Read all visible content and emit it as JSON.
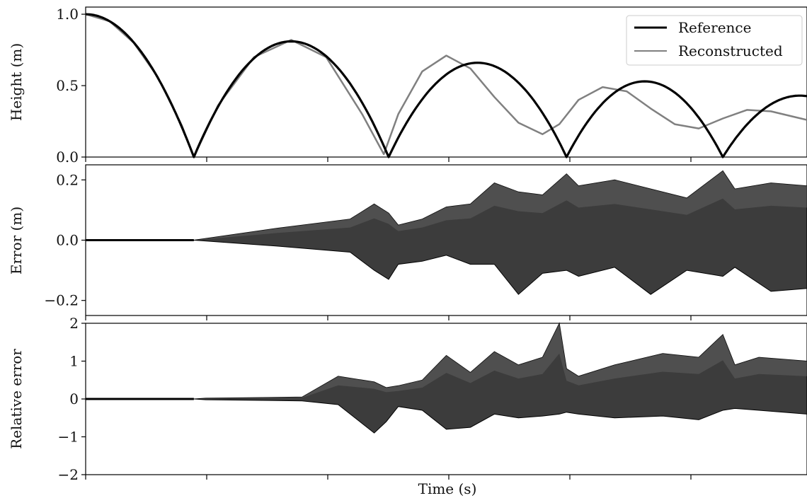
{
  "chart_data": [
    {
      "type": "line",
      "ylabel": "Height (m)",
      "xlabel": "",
      "ylim": [
        0,
        1.05
      ],
      "yticks": [
        "0.0",
        "0.5",
        "1.0"
      ],
      "ytick_values": [
        0,
        0.5,
        1.0
      ],
      "xlim": [
        0,
        3.0
      ],
      "grid": false,
      "legend": "top-right",
      "series": [
        {
          "name": "Reference",
          "color": "#000000",
          "note_key": "reference",
          "bounces": [
            {
              "t0": 0.0,
              "t1": 0.45,
              "apex_t": 0.0,
              "apex_h": 1.0
            },
            {
              "t0": 0.45,
              "t1": 1.26,
              "apex_t": 0.855,
              "apex_h": 0.81
            },
            {
              "t0": 1.26,
              "t1": 2.0,
              "apex_t": 1.63,
              "apex_h": 0.66
            },
            {
              "t0": 2.0,
              "t1": 2.65,
              "apex_t": 2.325,
              "apex_h": 0.53
            },
            {
              "t0": 2.65,
              "t1": 3.0,
              "apex_t": 2.97,
              "apex_h": 0.43
            }
          ]
        },
        {
          "name": "Reconstructed",
          "color": "#808080",
          "points_t": [
            0.0,
            0.1,
            0.2,
            0.3,
            0.4,
            0.45,
            0.55,
            0.7,
            0.855,
            1.0,
            1.15,
            1.24,
            1.3,
            1.4,
            1.5,
            1.6,
            1.7,
            1.8,
            1.9,
            1.97,
            2.05,
            2.15,
            2.25,
            2.35,
            2.45,
            2.55,
            2.65,
            2.75,
            2.85,
            2.95,
            3.0
          ],
          "points_h": [
            1.0,
            0.95,
            0.8,
            0.56,
            0.22,
            0.0,
            0.36,
            0.7,
            0.82,
            0.7,
            0.3,
            0.02,
            0.3,
            0.6,
            0.71,
            0.62,
            0.42,
            0.24,
            0.16,
            0.23,
            0.4,
            0.49,
            0.46,
            0.34,
            0.23,
            0.2,
            0.27,
            0.33,
            0.32,
            0.28,
            0.26
          ]
        }
      ]
    },
    {
      "type": "area",
      "ylabel": "Error (m)",
      "xlabel": "",
      "ylim": [
        -0.25,
        0.25
      ],
      "yticks": [
        "−0.2",
        "0.0",
        "0.2"
      ],
      "ytick_values": [
        -0.2,
        0,
        0.2
      ],
      "xlim": [
        0,
        3.0
      ],
      "grid": false,
      "envelope_t": [
        0.0,
        0.45,
        0.8,
        1.1,
        1.2,
        1.26,
        1.3,
        1.4,
        1.5,
        1.6,
        1.7,
        1.8,
        1.9,
        2.0,
        2.05,
        2.2,
        2.35,
        2.5,
        2.65,
        2.7,
        2.85,
        3.0
      ],
      "envelope_upper": [
        0.0,
        0.0,
        0.04,
        0.07,
        0.12,
        0.09,
        0.05,
        0.07,
        0.11,
        0.12,
        0.19,
        0.16,
        0.15,
        0.22,
        0.18,
        0.2,
        0.17,
        0.14,
        0.23,
        0.17,
        0.19,
        0.18
      ],
      "envelope_lower": [
        0.0,
        0.0,
        -0.02,
        -0.04,
        -0.1,
        -0.13,
        -0.08,
        -0.07,
        -0.05,
        -0.08,
        -0.08,
        -0.18,
        -0.11,
        -0.1,
        -0.12,
        -0.09,
        -0.18,
        -0.1,
        -0.12,
        -0.09,
        -0.17,
        -0.16
      ]
    },
    {
      "type": "area",
      "ylabel": "Relative error",
      "xlabel": "Time (s)",
      "ylim": [
        -2,
        2
      ],
      "yticks": [
        "−2",
        "−1",
        "0",
        "1",
        "2"
      ],
      "ytick_values": [
        -2,
        -1,
        0,
        1,
        2
      ],
      "xlim": [
        0,
        3.0
      ],
      "grid": false,
      "envelope_t": [
        0.0,
        0.45,
        0.5,
        0.9,
        1.05,
        1.2,
        1.25,
        1.3,
        1.4,
        1.5,
        1.6,
        1.7,
        1.8,
        1.9,
        1.97,
        2.0,
        2.05,
        2.2,
        2.4,
        2.55,
        2.65,
        2.7,
        2.8,
        3.0
      ],
      "envelope_upper": [
        0.0,
        0.0,
        0.02,
        0.05,
        0.6,
        0.45,
        0.3,
        0.35,
        0.5,
        1.15,
        0.7,
        1.25,
        0.9,
        1.1,
        2.0,
        0.8,
        0.6,
        0.9,
        1.2,
        1.1,
        1.7,
        0.9,
        1.1,
        1.0
      ],
      "envelope_lower": [
        0.0,
        0.0,
        -0.02,
        -0.05,
        -0.15,
        -0.9,
        -0.6,
        -0.2,
        -0.3,
        -0.8,
        -0.75,
        -0.4,
        -0.5,
        -0.45,
        -0.4,
        -0.35,
        -0.4,
        -0.5,
        -0.45,
        -0.55,
        -0.3,
        -0.25,
        -0.3,
        -0.4
      ]
    }
  ]
}
